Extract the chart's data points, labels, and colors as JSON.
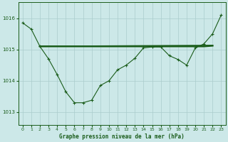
{
  "title": "Graphe pression niveau de la mer (hPa)",
  "bg_color": "#cce8e8",
  "grid_color": "#aacccc",
  "line_color": "#1a5c1a",
  "x_ticks": [
    0,
    1,
    2,
    3,
    4,
    5,
    6,
    7,
    8,
    9,
    10,
    11,
    12,
    13,
    14,
    15,
    16,
    17,
    18,
    19,
    20,
    21,
    22,
    23
  ],
  "y_ticks": [
    1013,
    1014,
    1015,
    1016
  ],
  "ylim": [
    1012.6,
    1016.5
  ],
  "xlim": [
    -0.5,
    23.5
  ],
  "series1_x": [
    0,
    1,
    2,
    3,
    4,
    5,
    6,
    7,
    8,
    9,
    10,
    11,
    12,
    13,
    14,
    15,
    16,
    17,
    18,
    19,
    20,
    21,
    22,
    23
  ],
  "series1_y": [
    1015.85,
    1015.65,
    1015.1,
    1014.7,
    1014.2,
    1013.65,
    1013.3,
    1013.3,
    1013.38,
    1013.85,
    1014.0,
    1014.35,
    1014.5,
    1014.72,
    1015.05,
    1015.08,
    1015.08,
    1014.8,
    1014.68,
    1014.5,
    1015.05,
    1015.18,
    1015.5,
    1016.1
  ],
  "series2_x": [
    2,
    22
  ],
  "series2_y": [
    1015.1,
    1015.13
  ],
  "series3_x": [
    2,
    9,
    10,
    11,
    12,
    13,
    14,
    15,
    16,
    21,
    22
  ],
  "series3_y": [
    1015.1,
    1015.1,
    1015.1,
    1015.1,
    1015.1,
    1015.1,
    1015.1,
    1015.1,
    1015.1,
    1015.1,
    1015.12
  ]
}
